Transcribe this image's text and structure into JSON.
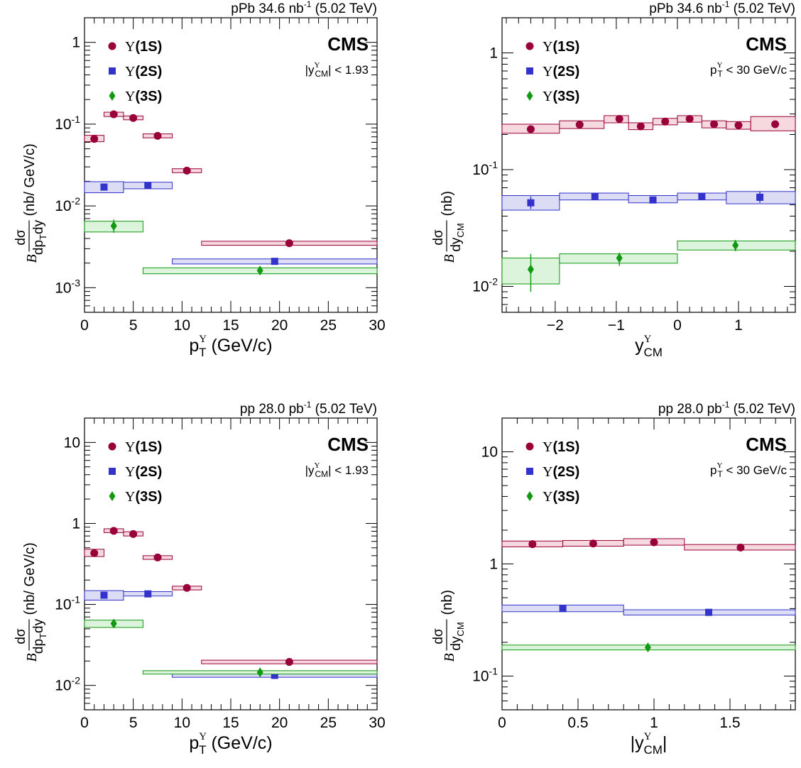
{
  "colors": {
    "1S": "#99003a",
    "2S": "#3333cc",
    "3S": "#119911",
    "1S_fill": "#f5d9df",
    "2S_fill": "#dcdcf5",
    "3S_fill": "#dcf3dc"
  },
  "chart_data": [
    {
      "type": "scatter",
      "header": "pPb 34.6 nb",
      "header_sup": "-1",
      "header_tail": " (5.02 TeV)",
      "experiment": "CMS",
      "cut": {
        "pre": "|y",
        "sup": "Υ",
        "sub": "CM",
        "post": "| < 1.93"
      },
      "xlabel": {
        "main": "p",
        "sup": "Υ",
        "sub": "T",
        "post": " (GeV/c)"
      },
      "ylabel": {
        "B": "B",
        "num": "dσ",
        "den": "dp",
        "den_sub": "T",
        "den_tail": "dy",
        "unit": "(nb/ GeV/c)"
      },
      "xlim": [
        0,
        30
      ],
      "ylim": [
        0.0005,
        2.0
      ],
      "log_y": true,
      "xticks": [
        "0",
        "5",
        "10",
        "15",
        "20",
        "25",
        "30"
      ],
      "xtick_values": [
        0,
        5,
        10,
        15,
        20,
        25,
        30
      ],
      "yticks": [
        {
          "base": "10",
          "exp": "-3",
          "value": 0.001
        },
        {
          "base": "10",
          "exp": "-2",
          "value": 0.01
        },
        {
          "base": "10",
          "exp": "-1",
          "value": 0.1
        },
        {
          "base": "1",
          "exp": "",
          "value": 1
        }
      ],
      "legend": [
        {
          "sym": "Υ",
          "label": "(1S)",
          "marker": "circle",
          "state": "1S"
        },
        {
          "sym": "Υ",
          "label": "(2S)",
          "marker": "square",
          "state": "2S"
        },
        {
          "sym": "Υ",
          "label": "(3S)",
          "marker": "diamond",
          "state": "3S"
        }
      ],
      "series": [
        {
          "state": "1S",
          "marker": "circle",
          "points": [
            {
              "x": 1.0,
              "y": 0.066,
              "xlo": 0,
              "xhi": 2,
              "slo": 0.061,
              "shi": 0.073
            },
            {
              "x": 3.0,
              "y": 0.132,
              "xlo": 2,
              "xhi": 4,
              "slo": 0.124,
              "shi": 0.14
            },
            {
              "x": 5.0,
              "y": 0.119,
              "xlo": 4,
              "xhi": 6,
              "slo": 0.113,
              "shi": 0.126
            },
            {
              "x": 7.5,
              "y": 0.072,
              "xlo": 6,
              "xhi": 9,
              "slo": 0.068,
              "shi": 0.076
            },
            {
              "x": 10.5,
              "y": 0.027,
              "xlo": 9,
              "xhi": 12,
              "slo": 0.0255,
              "shi": 0.0285
            },
            {
              "x": 21.0,
              "y": 0.0035,
              "xlo": 12,
              "xhi": 30,
              "slo": 0.0033,
              "shi": 0.0037
            }
          ]
        },
        {
          "state": "2S",
          "marker": "square",
          "points": [
            {
              "x": 2.0,
              "y": 0.017,
              "xlo": 0,
              "xhi": 4,
              "slo": 0.0145,
              "shi": 0.0198
            },
            {
              "x": 6.5,
              "y": 0.0178,
              "xlo": 4,
              "xhi": 9,
              "slo": 0.0162,
              "shi": 0.0195
            },
            {
              "x": 19.5,
              "y": 0.0021,
              "xlo": 9,
              "xhi": 30,
              "slo": 0.00195,
              "shi": 0.00225
            }
          ]
        },
        {
          "state": "3S",
          "marker": "diamond",
          "points": [
            {
              "x": 3.0,
              "y": 0.0057,
              "xlo": 0,
              "xhi": 6,
              "elo": 0.0047,
              "ehi": 0.0068,
              "slo": 0.0048,
              "shi": 0.0065
            },
            {
              "x": 18.0,
              "y": 0.00162,
              "xlo": 6,
              "xhi": 30,
              "elo": 0.00148,
              "ehi": 0.00178,
              "slo": 0.00148,
              "shi": 0.00175
            }
          ]
        }
      ]
    },
    {
      "type": "scatter",
      "header": "pPb 34.6 nb",
      "header_sup": "-1",
      "header_tail": " (5.02 TeV)",
      "experiment": "CMS",
      "cut": {
        "pre": "p",
        "sup": "Υ",
        "sub": "T",
        "post": " < 30 GeV/c"
      },
      "xlabel": {
        "main": "y",
        "sup": "Υ",
        "sub": "CM",
        "post": ""
      },
      "ylabel": {
        "B": "B",
        "num": "dσ",
        "den": "dy",
        "den_sub": "CM",
        "den_tail": "",
        "unit": "(nb)"
      },
      "xlim": [
        -2.87,
        1.93
      ],
      "ylim": [
        0.006,
        2.0
      ],
      "log_y": true,
      "xticks": [
        "−2",
        "−1",
        "0",
        "1"
      ],
      "xtick_values": [
        -2,
        -1,
        0,
        1
      ],
      "yticks": [
        {
          "base": "10",
          "exp": "-2",
          "value": 0.01
        },
        {
          "base": "10",
          "exp": "-1",
          "value": 0.1
        },
        {
          "base": "1",
          "exp": "",
          "value": 1
        }
      ],
      "legend": [
        {
          "sym": "Υ",
          "label": "(1S)",
          "marker": "circle",
          "state": "1S"
        },
        {
          "sym": "Υ",
          "label": "(2S)",
          "marker": "square",
          "state": "2S"
        },
        {
          "sym": "Υ",
          "label": "(3S)",
          "marker": "diamond",
          "state": "3S"
        }
      ],
      "series": [
        {
          "state": "1S",
          "marker": "circle",
          "points": [
            {
              "x": -2.4,
              "y": 0.222,
              "xlo": -2.87,
              "xhi": -1.93,
              "slo": 0.205,
              "shi": 0.245
            },
            {
              "x": -1.6,
              "y": 0.243,
              "xlo": -1.93,
              "xhi": -1.2,
              "slo": 0.225,
              "shi": 0.262
            },
            {
              "x": -0.95,
              "y": 0.272,
              "xlo": -1.2,
              "xhi": -0.8,
              "slo": 0.252,
              "shi": 0.29
            },
            {
              "x": -0.6,
              "y": 0.235,
              "xlo": -0.8,
              "xhi": -0.4,
              "slo": 0.22,
              "shi": 0.252
            },
            {
              "x": -0.2,
              "y": 0.258,
              "xlo": -0.4,
              "xhi": 0.0,
              "slo": 0.242,
              "shi": 0.275
            },
            {
              "x": 0.2,
              "y": 0.272,
              "xlo": 0.0,
              "xhi": 0.4,
              "slo": 0.255,
              "shi": 0.29
            },
            {
              "x": 0.6,
              "y": 0.245,
              "xlo": 0.4,
              "xhi": 0.8,
              "slo": 0.228,
              "shi": 0.262
            },
            {
              "x": 1.0,
              "y": 0.24,
              "xlo": 0.8,
              "xhi": 1.2,
              "slo": 0.222,
              "shi": 0.258
            },
            {
              "x": 1.6,
              "y": 0.245,
              "xlo": 1.2,
              "xhi": 1.93,
              "slo": 0.215,
              "shi": 0.285
            }
          ]
        },
        {
          "state": "2S",
          "marker": "square",
          "points": [
            {
              "x": -2.4,
              "y": 0.052,
              "xlo": -2.87,
              "xhi": -1.93,
              "elo": 0.046,
              "ehi": 0.059,
              "slo": 0.045,
              "shi": 0.06
            },
            {
              "x": -1.35,
              "y": 0.059,
              "xlo": -1.93,
              "xhi": -0.8,
              "slo": 0.055,
              "shi": 0.063
            },
            {
              "x": -0.4,
              "y": 0.055,
              "xlo": -0.8,
              "xhi": 0.0,
              "slo": 0.052,
              "shi": 0.06
            },
            {
              "x": 0.4,
              "y": 0.059,
              "xlo": 0.0,
              "xhi": 0.8,
              "slo": 0.055,
              "shi": 0.063
            },
            {
              "x": 1.35,
              "y": 0.058,
              "xlo": 0.8,
              "xhi": 1.93,
              "elo": 0.052,
              "ehi": 0.065,
              "slo": 0.051,
              "shi": 0.065
            }
          ]
        },
        {
          "state": "3S",
          "marker": "diamond",
          "points": [
            {
              "x": -2.4,
              "y": 0.014,
              "xlo": -2.87,
              "xhi": -1.93,
              "elo": 0.009,
              "ehi": 0.019,
              "slo": 0.0105,
              "shi": 0.0175
            },
            {
              "x": -0.95,
              "y": 0.0175,
              "xlo": -1.93,
              "xhi": 0.0,
              "elo": 0.015,
              "ehi": 0.0195,
              "slo": 0.0158,
              "shi": 0.019
            },
            {
              "x": 0.95,
              "y": 0.0225,
              "xlo": 0.0,
              "xhi": 1.93,
              "elo": 0.02,
              "ehi": 0.025,
              "slo": 0.0205,
              "shi": 0.0245
            }
          ]
        }
      ]
    },
    {
      "type": "scatter",
      "header": "pp 28.0 pb",
      "header_sup": "-1",
      "header_tail": " (5.02 TeV)",
      "experiment": "CMS",
      "cut": {
        "pre": "|y",
        "sup": "Υ",
        "sub": "CM",
        "post": "| < 1.93"
      },
      "xlabel": {
        "main": "p",
        "sup": "Υ",
        "sub": "T",
        "post": " (GeV/c)"
      },
      "ylabel": {
        "B": "B",
        "num": "dσ",
        "den": "dp",
        "den_sub": "T",
        "den_tail": "dy",
        "unit": "(nb/ GeV/c)"
      },
      "xlim": [
        0,
        30
      ],
      "ylim": [
        0.005,
        20
      ],
      "log_y": true,
      "xticks": [
        "0",
        "5",
        "10",
        "15",
        "20",
        "25",
        "30"
      ],
      "xtick_values": [
        0,
        5,
        10,
        15,
        20,
        25,
        30
      ],
      "yticks": [
        {
          "base": "10",
          "exp": "-2",
          "value": 0.01
        },
        {
          "base": "10",
          "exp": "-1",
          "value": 0.1
        },
        {
          "base": "1",
          "exp": "",
          "value": 1
        },
        {
          "base": "10",
          "exp": "",
          "value": 10
        }
      ],
      "legend": [
        {
          "sym": "Υ",
          "label": "(1S)",
          "marker": "circle",
          "state": "1S"
        },
        {
          "sym": "Υ",
          "label": "(2S)",
          "marker": "square",
          "state": "2S"
        },
        {
          "sym": "Υ",
          "label": "(3S)",
          "marker": "diamond",
          "state": "3S"
        }
      ],
      "series": [
        {
          "state": "1S",
          "marker": "circle",
          "points": [
            {
              "x": 1.0,
              "y": 0.43,
              "xlo": 0,
              "xhi": 2,
              "slo": 0.39,
              "shi": 0.48
            },
            {
              "x": 3.0,
              "y": 0.81,
              "xlo": 2,
              "xhi": 4,
              "slo": 0.77,
              "shi": 0.86
            },
            {
              "x": 5.0,
              "y": 0.74,
              "xlo": 4,
              "xhi": 6,
              "slo": 0.7,
              "shi": 0.79
            },
            {
              "x": 7.5,
              "y": 0.38,
              "xlo": 6,
              "xhi": 9,
              "slo": 0.36,
              "shi": 0.4
            },
            {
              "x": 10.5,
              "y": 0.16,
              "xlo": 9,
              "xhi": 12,
              "slo": 0.151,
              "shi": 0.168
            },
            {
              "x": 21.0,
              "y": 0.0195,
              "xlo": 12,
              "xhi": 30,
              "slo": 0.0185,
              "shi": 0.0205
            }
          ]
        },
        {
          "state": "2S",
          "marker": "square",
          "points": [
            {
              "x": 2.0,
              "y": 0.13,
              "xlo": 0,
              "xhi": 4,
              "slo": 0.113,
              "shi": 0.148
            },
            {
              "x": 6.5,
              "y": 0.135,
              "xlo": 4,
              "xhi": 9,
              "slo": 0.127,
              "shi": 0.144
            },
            {
              "x": 19.5,
              "y": 0.0133,
              "xlo": 9,
              "xhi": 30,
              "slo": 0.0126,
              "shi": 0.014
            }
          ]
        },
        {
          "state": "3S",
          "marker": "diamond",
          "points": [
            {
              "x": 3.0,
              "y": 0.058,
              "xlo": 0,
              "xhi": 6,
              "elo": 0.052,
              "ehi": 0.064,
              "slo": 0.052,
              "shi": 0.064
            },
            {
              "x": 18.0,
              "y": 0.0145,
              "xlo": 6,
              "xhi": 30,
              "elo": 0.013,
              "ehi": 0.016,
              "slo": 0.0138,
              "shi": 0.0152
            }
          ]
        }
      ]
    },
    {
      "type": "scatter",
      "header": "pp 28.0 pb",
      "header_sup": "-1",
      "header_tail": " (5.02 TeV)",
      "experiment": "CMS",
      "cut": {
        "pre": "p",
        "sup": "Υ",
        "sub": "T",
        "post": " < 30 GeV/c"
      },
      "xlabel": {
        "main": "|y",
        "sup": "Υ",
        "sub": "CM",
        "post": "|"
      },
      "ylabel": {
        "B": "B",
        "num": "dσ",
        "den": "dy",
        "den_sub": "CM",
        "den_tail": "",
        "unit": "(nb)"
      },
      "xlim": [
        0,
        1.93
      ],
      "ylim": [
        0.05,
        20
      ],
      "log_y": true,
      "xticks": [
        "0",
        "0.5",
        "1",
        "1.5"
      ],
      "xtick_values": [
        0,
        0.5,
        1,
        1.5
      ],
      "yticks": [
        {
          "base": "10",
          "exp": "-1",
          "value": 0.1
        },
        {
          "base": "1",
          "exp": "",
          "value": 1
        },
        {
          "base": "10",
          "exp": "",
          "value": 10
        }
      ],
      "legend": [
        {
          "sym": "Υ",
          "label": "(1S)",
          "marker": "circle",
          "state": "1S"
        },
        {
          "sym": "Υ",
          "label": "(2S)",
          "marker": "square",
          "state": "2S"
        },
        {
          "sym": "Υ",
          "label": "(3S)",
          "marker": "diamond",
          "state": "3S"
        }
      ],
      "series": [
        {
          "state": "1S",
          "marker": "circle",
          "points": [
            {
              "x": 0.2,
              "y": 1.5,
              "xlo": 0.0,
              "xhi": 0.4,
              "slo": 1.42,
              "shi": 1.6
            },
            {
              "x": 0.6,
              "y": 1.52,
              "xlo": 0.4,
              "xhi": 0.8,
              "slo": 1.44,
              "shi": 1.62
            },
            {
              "x": 1.0,
              "y": 1.56,
              "xlo": 0.8,
              "xhi": 1.2,
              "slo": 1.47,
              "shi": 1.68
            },
            {
              "x": 1.57,
              "y": 1.4,
              "xlo": 1.2,
              "xhi": 1.93,
              "slo": 1.33,
              "shi": 1.49
            }
          ]
        },
        {
          "state": "2S",
          "marker": "square",
          "points": [
            {
              "x": 0.4,
              "y": 0.4,
              "xlo": 0.0,
              "xhi": 0.8,
              "slo": 0.375,
              "shi": 0.43
            },
            {
              "x": 1.36,
              "y": 0.37,
              "xlo": 0.8,
              "xhi": 1.93,
              "slo": 0.35,
              "shi": 0.39
            }
          ]
        },
        {
          "state": "3S",
          "marker": "diamond",
          "points": [
            {
              "x": 0.96,
              "y": 0.18,
              "xlo": 0.0,
              "xhi": 1.93,
              "elo": 0.17,
              "ehi": 0.19,
              "slo": 0.171,
              "shi": 0.189
            }
          ]
        }
      ]
    }
  ]
}
